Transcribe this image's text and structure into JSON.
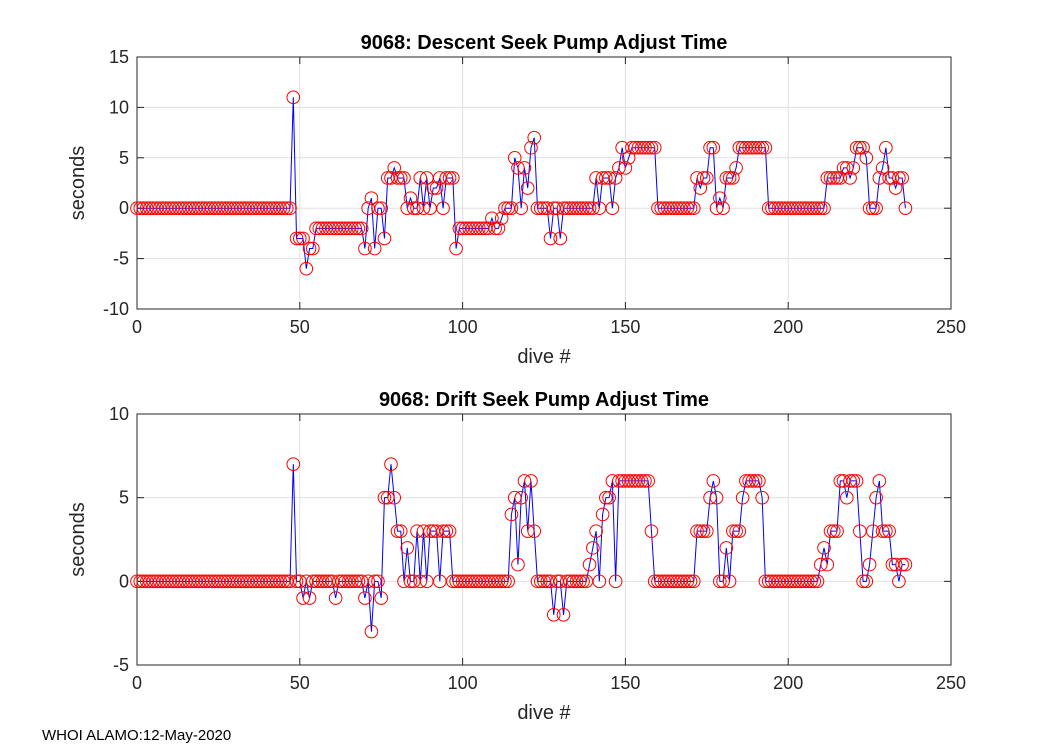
{
  "footer": "WHOI ALAMO:12-May-2020",
  "chart_data": [
    {
      "type": "line",
      "title": "9068: Descent Seek Pump Adjust Time",
      "xlabel": "dive #",
      "ylabel": "seconds",
      "xlim": [
        0,
        250
      ],
      "ylim": [
        -10,
        15
      ],
      "xticks": [
        0,
        50,
        100,
        150,
        200,
        250
      ],
      "yticks": [
        -10,
        -5,
        0,
        5,
        10,
        15
      ],
      "grid": true,
      "line_color": "#0000ff",
      "marker_color": "#ff0000",
      "marker": "open-circle",
      "x_start": 0,
      "x_step": 1,
      "values": [
        0,
        0,
        0,
        0,
        0,
        0,
        0,
        0,
        0,
        0,
        0,
        0,
        0,
        0,
        0,
        0,
        0,
        0,
        0,
        0,
        0,
        0,
        0,
        0,
        0,
        0,
        0,
        0,
        0,
        0,
        0,
        0,
        0,
        0,
        0,
        0,
        0,
        0,
        0,
        0,
        0,
        0,
        0,
        0,
        0,
        0,
        0,
        0,
        11,
        -3,
        -3,
        -3,
        -6,
        -4,
        -4,
        -2,
        -2,
        -2,
        -2,
        -2,
        -2,
        -2,
        -2,
        -2,
        -2,
        -2,
        -2,
        -2,
        -2,
        -2,
        -4,
        0,
        1,
        -4,
        0,
        0,
        -3,
        3,
        3,
        4,
        3,
        3,
        3,
        0,
        1,
        0,
        0,
        3,
        0,
        3,
        0,
        2,
        2,
        3,
        0,
        3,
        3,
        3,
        -4,
        -2,
        -2,
        -2,
        -2,
        -2,
        -2,
        -2,
        -2,
        -2,
        -2,
        -1,
        -2,
        -2,
        -1,
        0,
        0,
        0,
        5,
        4,
        0,
        4,
        2,
        6,
        7,
        0,
        0,
        0,
        0,
        -3,
        0,
        0,
        -3,
        0,
        0,
        0,
        0,
        0,
        0,
        0,
        0,
        0,
        0,
        3,
        0,
        3,
        3,
        3,
        0,
        3,
        4,
        6,
        4,
        5,
        6,
        6,
        6,
        6,
        6,
        6,
        6,
        6,
        0,
        0,
        0,
        0,
        0,
        0,
        0,
        0,
        0,
        0,
        0,
        0,
        3,
        2,
        3,
        3,
        6,
        6,
        0,
        1,
        0,
        3,
        3,
        3,
        4,
        6,
        6,
        6,
        6,
        6,
        6,
        6,
        6,
        6,
        0,
        0,
        0,
        0,
        0,
        0,
        0,
        0,
        0,
        0,
        0,
        0,
        0,
        0,
        0,
        0,
        0,
        0,
        3,
        3,
        3,
        3,
        3,
        4,
        4,
        3,
        4,
        6,
        6,
        6,
        5,
        0,
        0,
        0,
        3,
        4,
        6,
        3,
        3,
        2,
        3,
        3,
        0
      ]
    },
    {
      "type": "line",
      "title": "9068: Drift Seek Pump Adjust Time",
      "xlabel": "dive #",
      "ylabel": "seconds",
      "xlim": [
        0,
        250
      ],
      "ylim": [
        -5,
        10
      ],
      "xticks": [
        0,
        50,
        100,
        150,
        200,
        250
      ],
      "yticks": [
        -5,
        0,
        5,
        10
      ],
      "grid": true,
      "line_color": "#0000ff",
      "marker_color": "#ff0000",
      "marker": "open-circle",
      "x_start": 0,
      "x_step": 1,
      "values": [
        0,
        0,
        0,
        0,
        0,
        0,
        0,
        0,
        0,
        0,
        0,
        0,
        0,
        0,
        0,
        0,
        0,
        0,
        0,
        0,
        0,
        0,
        0,
        0,
        0,
        0,
        0,
        0,
        0,
        0,
        0,
        0,
        0,
        0,
        0,
        0,
        0,
        0,
        0,
        0,
        0,
        0,
        0,
        0,
        0,
        0,
        0,
        0,
        7,
        0,
        0,
        -1,
        0,
        -1,
        0,
        0,
        0,
        0,
        0,
        0,
        0,
        -1,
        0,
        0,
        0,
        0,
        0,
        0,
        0,
        0,
        -1,
        0,
        -3,
        0,
        0,
        -1,
        5,
        5,
        7,
        5,
        3,
        3,
        0,
        2,
        0,
        0,
        3,
        0,
        3,
        0,
        3,
        3,
        3,
        0,
        3,
        3,
        3,
        0,
        0,
        0,
        0,
        0,
        0,
        0,
        0,
        0,
        0,
        0,
        0,
        0,
        0,
        0,
        0,
        0,
        0,
        4,
        5,
        1,
        5,
        6,
        3,
        6,
        3,
        0,
        0,
        0,
        0,
        0,
        -2,
        0,
        0,
        -2,
        0,
        0,
        0,
        0,
        0,
        0,
        0,
        1,
        2,
        3,
        0,
        4,
        5,
        5,
        6,
        0,
        6,
        6,
        6,
        6,
        6,
        6,
        6,
        6,
        6,
        6,
        3,
        0,
        0,
        0,
        0,
        0,
        0,
        0,
        0,
        0,
        0,
        0,
        0,
        0,
        3,
        3,
        3,
        3,
        5,
        6,
        5,
        0,
        0,
        2,
        0,
        3,
        3,
        3,
        5,
        6,
        6,
        6,
        6,
        6,
        5,
        0,
        0,
        0,
        0,
        0,
        0,
        0,
        0,
        0,
        0,
        0,
        0,
        0,
        0,
        0,
        0,
        0,
        1,
        2,
        1,
        3,
        3,
        3,
        6,
        6,
        5,
        6,
        6,
        6,
        3,
        0,
        0,
        1,
        3,
        5,
        6,
        3,
        3,
        3,
        1,
        1,
        0,
        1,
        1
      ]
    }
  ]
}
